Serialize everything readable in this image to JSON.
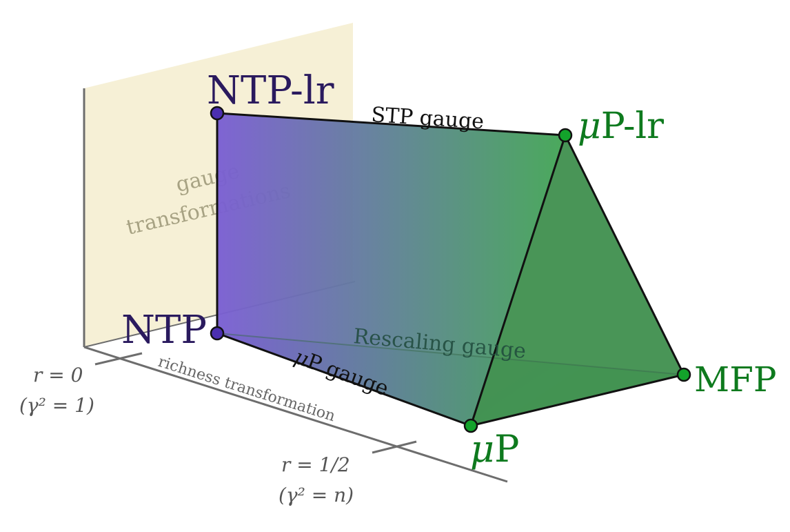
{
  "diagram": {
    "vertices": {
      "ntp_lr": "NTP-lr",
      "ntp": "NTP",
      "mup_lr_sym": "μ",
      "mup_lr_rest": "P-lr",
      "mup_sym": "μ",
      "mup_rest": "P",
      "mfp": "MFP"
    },
    "edges": {
      "stp_gauge": "STP gauge",
      "mup_gauge_sym": "μ",
      "mup_gauge_rest": "P gauge",
      "rescaling_gauge": "Rescaling gauge"
    },
    "plane": {
      "line1": "gauge",
      "line2": "transformations"
    },
    "axis": {
      "label": "richness transformation",
      "tick0_r": "r = 0",
      "tick0_gamma": "(γ² = 1)",
      "tick1_r": "r = 1/2",
      "tick1_gamma": "(γ² = n)"
    },
    "colors": {
      "purple": "#2a1a5e",
      "green": "#0e7a1e",
      "plane": "#f5efd3",
      "purple_face": "#7b5bd0",
      "green_face": "#3c9a4f"
    }
  }
}
